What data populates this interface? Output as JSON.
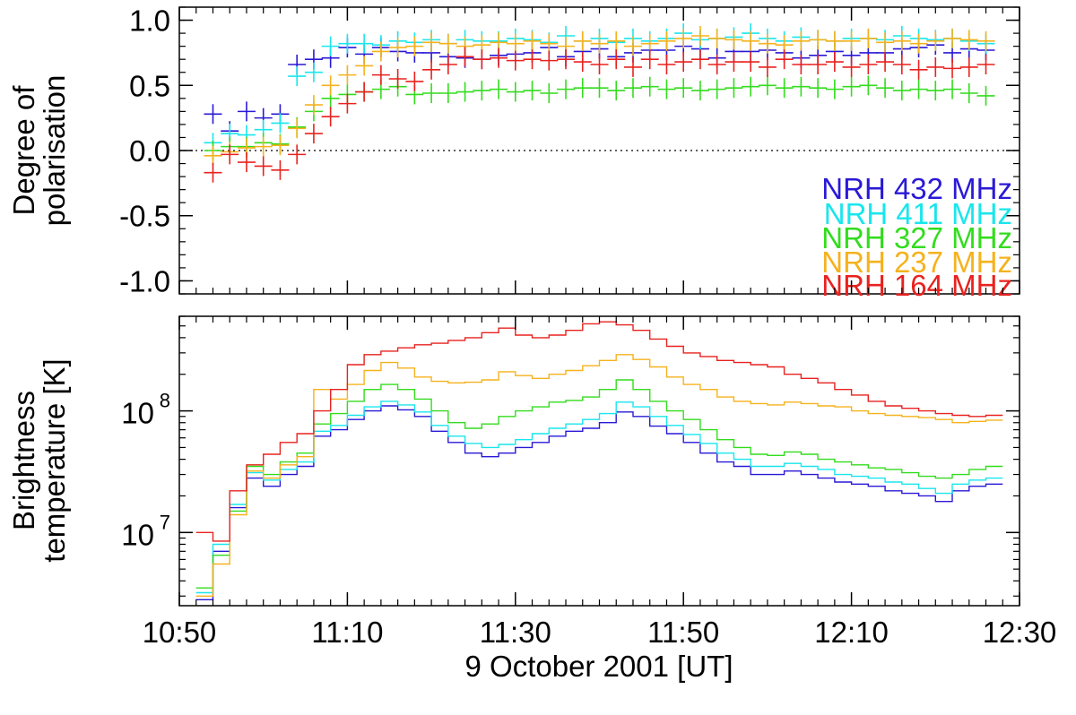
{
  "chart_data": [
    {
      "type": "scatter",
      "panel": "top",
      "ylabel": [
        "Degree of",
        "polarisation"
      ],
      "xlim": [
        50,
        150
      ],
      "ylim": [
        -1.1,
        1.1
      ],
      "yticks": [
        1.0,
        0.5,
        0.0,
        -0.5,
        -1.0
      ],
      "ytick_labels": [
        "1.0",
        "0.5",
        "0.0",
        "-0.5",
        "-1.0"
      ],
      "x_unit_note": "minutes after 10:00 UT",
      "x": [
        54,
        56,
        58,
        60,
        62,
        64,
        66,
        68,
        70,
        72,
        74,
        76,
        78,
        80,
        82,
        84,
        86,
        88,
        90,
        92,
        94,
        96,
        98,
        100,
        102,
        104,
        106,
        108,
        110,
        112,
        114,
        116,
        118,
        120,
        122,
        124,
        126,
        128,
        130,
        132,
        134,
        136,
        138,
        140,
        142,
        144,
        146
      ],
      "zero_line": 0.0,
      "series": [
        {
          "name": "NRH 432 MHz",
          "color": "#2a19d6",
          "values": [
            0.28,
            0.15,
            0.3,
            0.25,
            0.28,
            0.66,
            0.7,
            0.71,
            0.79,
            0.74,
            0.79,
            0.76,
            0.75,
            0.75,
            0.72,
            0.71,
            0.7,
            0.73,
            0.74,
            0.75,
            0.79,
            0.72,
            0.76,
            0.78,
            0.72,
            0.75,
            0.77,
            0.77,
            0.8,
            0.78,
            0.71,
            0.76,
            0.76,
            0.77,
            0.75,
            0.71,
            0.73,
            0.76,
            0.73,
            0.75,
            0.75,
            0.78,
            0.79,
            0.81,
            0.75,
            0.78,
            0.77
          ]
        },
        {
          "name": "NRH 411 MHz",
          "color": "#19e6ec",
          "values": [
            0.06,
            0.13,
            0.12,
            0.16,
            0.21,
            0.57,
            0.6,
            0.8,
            0.82,
            0.82,
            0.81,
            0.84,
            0.83,
            0.85,
            0.82,
            0.85,
            0.84,
            0.84,
            0.86,
            0.85,
            0.83,
            0.88,
            0.84,
            0.86,
            0.83,
            0.86,
            0.84,
            0.86,
            0.9,
            0.85,
            0.86,
            0.87,
            0.9,
            0.86,
            0.84,
            0.87,
            0.85,
            0.84,
            0.86,
            0.86,
            0.85,
            0.88,
            0.86,
            0.85,
            0.86,
            0.84,
            0.82
          ]
        },
        {
          "name": "NRH 327 MHz",
          "color": "#33dc1e",
          "values": [
            0.0,
            0.03,
            0.03,
            0.06,
            0.05,
            0.18,
            0.3,
            0.4,
            0.43,
            0.45,
            0.47,
            0.49,
            0.43,
            0.44,
            0.44,
            0.45,
            0.46,
            0.47,
            0.45,
            0.46,
            0.44,
            0.47,
            0.48,
            0.48,
            0.46,
            0.48,
            0.49,
            0.47,
            0.48,
            0.46,
            0.47,
            0.48,
            0.49,
            0.5,
            0.48,
            0.49,
            0.48,
            0.47,
            0.49,
            0.5,
            0.48,
            0.46,
            0.47,
            0.46,
            0.47,
            0.44,
            0.42
          ]
        },
        {
          "name": "NRH 237 MHz",
          "color": "#f5b21d",
          "values": [
            -0.04,
            -0.01,
            0.02,
            0.03,
            0.04,
            0.17,
            0.35,
            0.5,
            0.58,
            0.65,
            0.76,
            0.79,
            0.8,
            0.83,
            0.82,
            0.8,
            0.81,
            0.83,
            0.82,
            0.84,
            0.82,
            0.8,
            0.84,
            0.82,
            0.84,
            0.8,
            0.82,
            0.84,
            0.86,
            0.88,
            0.86,
            0.85,
            0.84,
            0.82,
            0.81,
            0.84,
            0.85,
            0.84,
            0.84,
            0.86,
            0.83,
            0.84,
            0.82,
            0.84,
            0.86,
            0.85,
            0.84
          ]
        },
        {
          "name": "NRH 164 MHz",
          "color": "#e8221f",
          "values": [
            -0.17,
            -0.03,
            -0.09,
            -0.12,
            -0.15,
            -0.03,
            0.13,
            0.26,
            0.36,
            0.45,
            0.58,
            0.55,
            0.53,
            0.62,
            0.66,
            0.72,
            0.7,
            0.71,
            0.69,
            0.7,
            0.69,
            0.7,
            0.68,
            0.66,
            0.7,
            0.64,
            0.7,
            0.66,
            0.68,
            0.7,
            0.66,
            0.68,
            0.68,
            0.64,
            0.7,
            0.66,
            0.66,
            0.68,
            0.64,
            0.66,
            0.68,
            0.66,
            0.62,
            0.64,
            0.63,
            0.64,
            0.66
          ]
        }
      ],
      "legend": {
        "placement": "bottom-right",
        "entries": [
          "NRH 432 MHz",
          "NRH 411 MHz",
          "NRH 327 MHz",
          "NRH 237 MHz",
          "NRH 164 MHz"
        ]
      }
    },
    {
      "type": "line",
      "panel": "bottom",
      "ylabel": [
        "Brightness",
        "temperature [K]"
      ],
      "yscale": "log",
      "ylim": [
        2500000,
        600000000
      ],
      "yticks": [
        10000000,
        100000000
      ],
      "ytick_base": "10",
      "ytick_exponents": [
        "7",
        "8"
      ],
      "xlim": [
        50,
        150
      ],
      "x_unit_note": "minutes after 10:00 UT",
      "x": [
        53,
        55,
        57,
        59,
        61,
        63,
        65,
        67,
        69,
        71,
        73,
        75,
        77,
        79,
        81,
        83,
        85,
        87,
        89,
        91,
        93,
        95,
        97,
        99,
        101,
        103,
        105,
        107,
        109,
        111,
        113,
        115,
        117,
        119,
        121,
        123,
        125,
        127,
        129,
        131,
        133,
        135,
        137,
        139,
        141,
        143,
        145,
        147
      ],
      "series": [
        {
          "name": "NRH 432 MHz",
          "color": "#2a19d6",
          "values": [
            2800000,
            7000000,
            16000000,
            28000000,
            24000000,
            30000000,
            35000000,
            62000000,
            70000000,
            85000000,
            100000000,
            110000000,
            102000000,
            90000000,
            68000000,
            55000000,
            45000000,
            42000000,
            45000000,
            50000000,
            55000000,
            62000000,
            68000000,
            72000000,
            80000000,
            98000000,
            90000000,
            75000000,
            65000000,
            55000000,
            45000000,
            38000000,
            35000000,
            30000000,
            30000000,
            32000000,
            30000000,
            28000000,
            26000000,
            25000000,
            24000000,
            22000000,
            21000000,
            20000000,
            18000000,
            22000000,
            24000000,
            25000000
          ]
        },
        {
          "name": "NRH 411 MHz",
          "color": "#19e6ec",
          "values": [
            3200000,
            8000000,
            17000000,
            31000000,
            27000000,
            33000000,
            38000000,
            68000000,
            76000000,
            92000000,
            108000000,
            120000000,
            112000000,
            98000000,
            76000000,
            62000000,
            54000000,
            50000000,
            53000000,
            58000000,
            65000000,
            72000000,
            78000000,
            85000000,
            95000000,
            118000000,
            108000000,
            90000000,
            76000000,
            64000000,
            54000000,
            45000000,
            40000000,
            35000000,
            35000000,
            37000000,
            35000000,
            33000000,
            30000000,
            29000000,
            28000000,
            26000000,
            25000000,
            23000000,
            21000000,
            25000000,
            27000000,
            28000000
          ]
        },
        {
          "name": "NRH 327 MHz",
          "color": "#33dc1e",
          "values": [
            3500000,
            6500000,
            15000000,
            35000000,
            30000000,
            38000000,
            45000000,
            78000000,
            95000000,
            120000000,
            150000000,
            165000000,
            150000000,
            125000000,
            100000000,
            80000000,
            72000000,
            78000000,
            90000000,
            100000000,
            108000000,
            118000000,
            122000000,
            130000000,
            150000000,
            180000000,
            150000000,
            120000000,
            100000000,
            85000000,
            70000000,
            58000000,
            50000000,
            44000000,
            43000000,
            46000000,
            44000000,
            40000000,
            38000000,
            36000000,
            34000000,
            33000000,
            31000000,
            29000000,
            28000000,
            30000000,
            33000000,
            35000000
          ]
        },
        {
          "name": "NRH 237 MHz",
          "color": "#f5b21d",
          "values": [
            3000000,
            5500000,
            14000000,
            32000000,
            28000000,
            36000000,
            42000000,
            150000000,
            125000000,
            165000000,
            215000000,
            250000000,
            225000000,
            190000000,
            175000000,
            170000000,
            172000000,
            180000000,
            210000000,
            195000000,
            185000000,
            200000000,
            215000000,
            235000000,
            260000000,
            290000000,
            265000000,
            230000000,
            190000000,
            165000000,
            150000000,
            130000000,
            120000000,
            115000000,
            112000000,
            118000000,
            115000000,
            110000000,
            108000000,
            100000000,
            95000000,
            92000000,
            90000000,
            88000000,
            85000000,
            80000000,
            82000000,
            84000000
          ]
        },
        {
          "name": "NRH 164 MHz",
          "color": "#e8221f",
          "values": [
            10000000,
            8500000,
            22000000,
            36000000,
            44000000,
            55000000,
            65000000,
            100000000,
            150000000,
            240000000,
            290000000,
            310000000,
            330000000,
            350000000,
            360000000,
            380000000,
            400000000,
            440000000,
            480000000,
            420000000,
            400000000,
            420000000,
            460000000,
            520000000,
            540000000,
            510000000,
            460000000,
            390000000,
            340000000,
            300000000,
            280000000,
            260000000,
            250000000,
            240000000,
            230000000,
            200000000,
            185000000,
            170000000,
            150000000,
            135000000,
            120000000,
            110000000,
            105000000,
            100000000,
            95000000,
            92000000,
            90000000,
            92000000
          ]
        }
      ]
    }
  ],
  "xaxis": {
    "tick_labels": [
      "10:50",
      "11:10",
      "11:30",
      "11:50",
      "12:10",
      "12:30"
    ],
    "tick_values": [
      50,
      70,
      90,
      110,
      130,
      150
    ],
    "label": "9 October  2001 [UT]"
  }
}
